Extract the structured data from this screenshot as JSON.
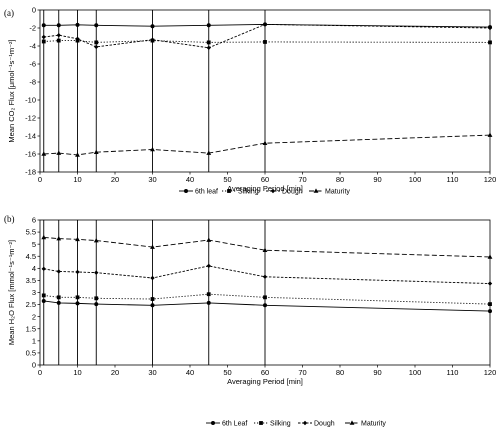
{
  "chart_data": [
    {
      "type": "line",
      "panel_label": "(a)",
      "xlabel": "Averaging Period [min]",
      "ylabel": "Mean CO₂ Flux [μmol⁻¹s⁻¹m⁻²]",
      "xlim": [
        0,
        120
      ],
      "ylim": [
        -18,
        0
      ],
      "xticks": [
        0,
        10,
        20,
        30,
        40,
        50,
        60,
        70,
        80,
        90,
        100,
        110,
        120
      ],
      "yticks": [
        -18,
        -16,
        -14,
        -12,
        -10,
        -8,
        -6,
        -4,
        -2,
        0
      ],
      "vlines": [
        1,
        5,
        10,
        15,
        30,
        45,
        60
      ],
      "legend_position": "bottom",
      "x": [
        1,
        5,
        10,
        15,
        30,
        45,
        60,
        120
      ],
      "series": [
        {
          "name": "6th leaf",
          "marker": "circle",
          "dash": "solid",
          "values": [
            -1.7,
            -1.7,
            -1.65,
            -1.7,
            -1.8,
            -1.7,
            -1.6,
            -1.9
          ]
        },
        {
          "name": "Silking",
          "marker": "square",
          "dash": "dotted",
          "values": [
            -3.5,
            -3.4,
            -3.4,
            -3.6,
            -3.4,
            -3.6,
            -3.55,
            -3.6
          ]
        },
        {
          "name": "Dough",
          "marker": "diamond",
          "dash": "shortdash",
          "values": [
            -3.0,
            -2.8,
            -3.2,
            -4.1,
            -3.3,
            -4.2,
            -1.6,
            -2.0
          ]
        },
        {
          "name": "Maturity",
          "marker": "triangle",
          "dash": "longdash",
          "values": [
            -16.0,
            -15.9,
            -16.1,
            -15.8,
            -15.5,
            -15.9,
            -14.8,
            -13.9
          ]
        }
      ]
    },
    {
      "type": "line",
      "panel_label": "(b)",
      "xlabel": "Averaging Period [min]",
      "ylabel": "Mean H₂O Flux [mmol⁻¹s⁻¹m⁻²]",
      "xlim": [
        0,
        120
      ],
      "ylim": [
        0,
        6
      ],
      "xticks": [
        0,
        10,
        20,
        30,
        40,
        50,
        60,
        70,
        80,
        90,
        100,
        110,
        120
      ],
      "yticks": [
        0,
        0.5,
        1,
        1.5,
        2,
        2.5,
        3,
        3.5,
        4,
        4.5,
        5,
        5.5,
        6
      ],
      "vlines": [
        1,
        5,
        10,
        15,
        30,
        45,
        60
      ],
      "legend_position": "bottom",
      "x": [
        1,
        5,
        10,
        15,
        30,
        45,
        60,
        120
      ],
      "series": [
        {
          "name": "6th Leaf",
          "marker": "circle",
          "dash": "solid",
          "values": [
            2.65,
            2.57,
            2.55,
            2.52,
            2.47,
            2.57,
            2.47,
            2.23
          ]
        },
        {
          "name": "Silking",
          "marker": "square",
          "dash": "dotted",
          "values": [
            2.88,
            2.8,
            2.8,
            2.76,
            2.73,
            2.93,
            2.8,
            2.52
          ]
        },
        {
          "name": "Dough",
          "marker": "diamond",
          "dash": "shortdash",
          "values": [
            3.98,
            3.87,
            3.85,
            3.82,
            3.6,
            4.1,
            3.65,
            3.37
          ]
        },
        {
          "name": "Maturity",
          "marker": "triangle",
          "dash": "longdash",
          "values": [
            5.28,
            5.23,
            5.2,
            5.15,
            4.88,
            5.17,
            4.75,
            4.47
          ]
        }
      ]
    }
  ]
}
